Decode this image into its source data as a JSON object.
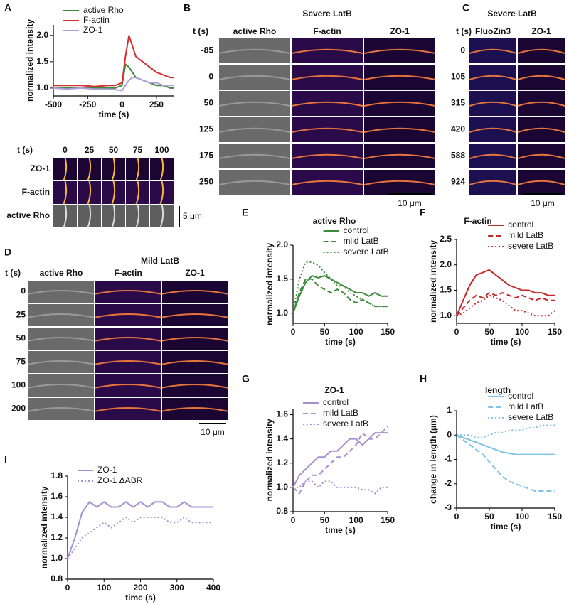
{
  "chart_data": [
    {
      "type": "line",
      "panel": "A",
      "xlabel": "time (s)",
      "ylabel": "normalized intensity",
      "legend": "upper left",
      "x": [
        -500,
        -400,
        -300,
        -200,
        -100,
        -50,
        0,
        25,
        50,
        75,
        100,
        150,
        200,
        250,
        300,
        350,
        380
      ],
      "xlim": [
        -500,
        380
      ],
      "xticks": [
        -500,
        -250,
        0,
        250
      ],
      "ylim": [
        0.85,
        2.2
      ],
      "yticks": [
        {
          "value": 1.0,
          "label": "1.0"
        },
        1.5,
        {
          "value": 2.0,
          "label": "2.0"
        }
      ],
      "series": [
        {
          "name": "active Rho",
          "color": "#3d8b3d",
          "dash": "solid",
          "values": [
            1.0,
            1.0,
            1.0,
            1.0,
            1.0,
            1.0,
            1.05,
            1.45,
            1.4,
            1.3,
            1.2,
            1.15,
            1.1,
            1.05,
            1.05,
            1.0,
            1.0
          ]
        },
        {
          "name": "F-actin",
          "color": "#d32f2f",
          "dash": "solid",
          "values": [
            1.05,
            1.05,
            1.05,
            1.03,
            1.05,
            1.05,
            1.1,
            1.6,
            2.0,
            1.8,
            1.6,
            1.5,
            1.4,
            1.3,
            1.25,
            1.2,
            1.2
          ]
        },
        {
          "name": "ZO-1",
          "color": "#b39ddb",
          "dash": "solid",
          "values": [
            1.0,
            0.98,
            1.0,
            0.98,
            0.98,
            0.97,
            0.95,
            1.05,
            1.15,
            1.2,
            1.2,
            1.15,
            1.1,
            1.1,
            1.05,
            1.05,
            1.05
          ]
        }
      ]
    },
    {
      "type": "line",
      "panel": "E",
      "title": "active Rho",
      "xlabel": "time (s)",
      "ylabel": "normalized intensity",
      "legend": "upper right",
      "x": [
        0,
        10,
        20,
        30,
        40,
        50,
        60,
        70,
        80,
        90,
        100,
        110,
        120,
        130,
        140,
        150
      ],
      "xlim": [
        0,
        150
      ],
      "xticks": [
        0,
        50,
        100,
        150
      ],
      "ylim": [
        0.85,
        2.0
      ],
      "yticks": [
        {
          "value": 1.0,
          "label": "1.0"
        },
        1.5,
        {
          "value": 2.0,
          "label": "2.0"
        }
      ],
      "series": [
        {
          "name": "control",
          "color": "#3d8b3d",
          "dash": "solid",
          "values": [
            1.0,
            1.25,
            1.45,
            1.55,
            1.52,
            1.55,
            1.5,
            1.45,
            1.4,
            1.35,
            1.3,
            1.3,
            1.25,
            1.3,
            1.25,
            1.25
          ]
        },
        {
          "name": "mild LatB",
          "color": "#3d8b3d",
          "dash": "dashed",
          "values": [
            1.0,
            1.3,
            1.5,
            1.5,
            1.4,
            1.35,
            1.3,
            1.35,
            1.3,
            1.2,
            1.15,
            1.2,
            1.15,
            1.1,
            1.1,
            1.1
          ]
        },
        {
          "name": "severe LatB",
          "color": "#3d8b3d",
          "dash": "dotted",
          "values": [
            1.0,
            1.5,
            1.75,
            1.75,
            1.7,
            1.6,
            1.5,
            1.4,
            1.4,
            1.3,
            1.25,
            1.2,
            1.15,
            1.1,
            1.1,
            1.1
          ]
        }
      ]
    },
    {
      "type": "line",
      "panel": "F",
      "title": "F-actin",
      "xlabel": "time (s)",
      "ylabel": "normalized intensity",
      "legend": "upper right",
      "x": [
        0,
        10,
        20,
        30,
        40,
        50,
        60,
        70,
        80,
        90,
        100,
        110,
        120,
        130,
        140,
        150
      ],
      "xlim": [
        0,
        150
      ],
      "xticks": [
        0,
        50,
        100,
        150
      ],
      "ylim": [
        0.85,
        2.5
      ],
      "yticks": [
        {
          "value": 1.0,
          "label": "1.0"
        },
        1.5,
        {
          "value": 2.0,
          "label": "2.0"
        },
        2.5
      ],
      "series": [
        {
          "name": "control",
          "color": "#c62828",
          "dash": "solid",
          "values": [
            1.0,
            1.3,
            1.6,
            1.8,
            1.85,
            1.9,
            1.8,
            1.7,
            1.6,
            1.55,
            1.5,
            1.5,
            1.45,
            1.45,
            1.4,
            1.4
          ]
        },
        {
          "name": "mild LatB",
          "color": "#c62828",
          "dash": "dashed",
          "values": [
            1.0,
            1.15,
            1.3,
            1.4,
            1.35,
            1.45,
            1.4,
            1.45,
            1.4,
            1.35,
            1.4,
            1.35,
            1.3,
            1.35,
            1.3,
            1.3
          ]
        },
        {
          "name": "severe LatB",
          "color": "#c62828",
          "dash": "dotted",
          "values": [
            1.0,
            1.05,
            1.15,
            1.25,
            1.3,
            1.4,
            1.35,
            1.3,
            1.2,
            1.1,
            1.1,
            1.05,
            1.0,
            1.0,
            1.0,
            1.1
          ]
        }
      ]
    },
    {
      "type": "line",
      "panel": "G",
      "title": "ZO-1",
      "xlabel": "time (s)",
      "ylabel": "normalized intensity",
      "legend": "upper left",
      "x": [
        0,
        10,
        20,
        30,
        40,
        50,
        60,
        70,
        80,
        90,
        100,
        110,
        120,
        130,
        140,
        150
      ],
      "xlim": [
        0,
        150
      ],
      "xticks": [
        0,
        50,
        100,
        150
      ],
      "ylim": [
        0.8,
        1.65
      ],
      "yticks": [
        0.8,
        {
          "value": 1.0,
          "label": "1.0"
        },
        1.2,
        1.4,
        1.6
      ],
      "series": [
        {
          "name": "control",
          "color": "#a58fcf",
          "dash": "solid",
          "values": [
            1.0,
            1.1,
            1.15,
            1.2,
            1.25,
            1.25,
            1.3,
            1.3,
            1.35,
            1.4,
            1.4,
            1.35,
            1.4,
            1.45,
            1.45,
            1.45
          ]
        },
        {
          "name": "mild LatB",
          "color": "#a58fcf",
          "dash": "dashed",
          "values": [
            1.0,
            0.95,
            1.05,
            1.1,
            1.1,
            1.15,
            1.2,
            1.25,
            1.25,
            1.3,
            1.35,
            1.45,
            1.4,
            1.4,
            1.45,
            1.5
          ]
        },
        {
          "name": "severe LatB",
          "color": "#a58fcf",
          "dash": "dotted",
          "values": [
            1.0,
            1.0,
            1.05,
            1.05,
            1.0,
            1.05,
            1.05,
            1.0,
            1.0,
            1.0,
            1.0,
            0.98,
            0.98,
            0.95,
            1.0,
            1.0
          ]
        }
      ]
    },
    {
      "type": "line",
      "panel": "H",
      "title": "length",
      "xlabel": "time (s)",
      "ylabel": "change in length (μm)",
      "legend": "upper right",
      "x": [
        0,
        10,
        20,
        30,
        40,
        50,
        60,
        70,
        80,
        90,
        100,
        110,
        120,
        130,
        140,
        150
      ],
      "xlim": [
        0,
        150
      ],
      "xticks": [
        0,
        50,
        100,
        150
      ],
      "ylim": [
        -3,
        1
      ],
      "yticks": [
        -3,
        -2,
        -1,
        0,
        1
      ],
      "series": [
        {
          "name": "control",
          "color": "#7ec3e8",
          "dash": "solid",
          "values": [
            0,
            -0.1,
            -0.2,
            -0.3,
            -0.4,
            -0.5,
            -0.6,
            -0.7,
            -0.75,
            -0.8,
            -0.8,
            -0.8,
            -0.8,
            -0.8,
            -0.8,
            -0.8
          ]
        },
        {
          "name": "mild LatB",
          "color": "#7ec3e8",
          "dash": "dashed",
          "values": [
            0,
            -0.2,
            -0.4,
            -0.6,
            -0.8,
            -1.1,
            -1.4,
            -1.7,
            -1.9,
            -2.0,
            -2.1,
            -2.2,
            -2.3,
            -2.3,
            -2.3,
            -2.3
          ]
        },
        {
          "name": "severe LatB",
          "color": "#7ec3e8",
          "dash": "dotted",
          "values": [
            0,
            0,
            0,
            -0.1,
            -0.1,
            0,
            0.1,
            0.1,
            0.2,
            0.2,
            0.2,
            0.3,
            0.3,
            0.4,
            0.4,
            0.4
          ]
        }
      ]
    },
    {
      "type": "line",
      "panel": "I",
      "xlabel": "time (s)",
      "ylabel": "normalized intensity",
      "legend": "upper left",
      "x": [
        0,
        20,
        40,
        60,
        80,
        100,
        120,
        140,
        160,
        180,
        200,
        220,
        240,
        260,
        280,
        300,
        320,
        340,
        360,
        380,
        400
      ],
      "xlim": [
        0,
        400
      ],
      "xticks": [
        0,
        100,
        200,
        300,
        400
      ],
      "ylim": [
        0.8,
        1.8
      ],
      "yticks": [
        0.8,
        {
          "value": 1.0,
          "label": "1.0"
        },
        1.2,
        1.4,
        1.6,
        1.8
      ],
      "series": [
        {
          "name": "ZO-1",
          "color": "#a58fcf",
          "dash": "solid",
          "values": [
            1.0,
            1.2,
            1.45,
            1.55,
            1.5,
            1.55,
            1.5,
            1.5,
            1.55,
            1.5,
            1.55,
            1.5,
            1.55,
            1.55,
            1.5,
            1.5,
            1.55,
            1.5,
            1.5,
            1.5,
            1.5
          ]
        },
        {
          "name": "ZO-1 ΔABR",
          "color": "#a58fcf",
          "dash": "dotted",
          "values": [
            1.0,
            1.1,
            1.2,
            1.25,
            1.3,
            1.35,
            1.3,
            1.35,
            1.4,
            1.35,
            1.4,
            1.4,
            1.4,
            1.4,
            1.35,
            1.35,
            1.4,
            1.35,
            1.35,
            1.35,
            1.35
          ]
        }
      ]
    }
  ],
  "image_panels": [
    {
      "time_header": "t (s)",
      "times": [
        "0",
        "25",
        "50",
        "75",
        "100"
      ],
      "channels": [
        "ZO-1",
        "F-actin",
        "active Rho"
      ],
      "scale_bar": "5 μm"
    },
    {
      "panel": "B",
      "title": "Severe LatB",
      "time_header": "t (s)",
      "times": [
        "-85",
        "0",
        "50",
        "125",
        "175",
        "250"
      ],
      "channels": [
        "active Rho",
        "F-actin",
        "ZO-1"
      ],
      "scale_bar": "10 μm"
    },
    {
      "panel": "C",
      "title": "Severe LatB",
      "time_header": "t (s)",
      "times": [
        "0",
        "105",
        "315",
        "420",
        "588",
        "924"
      ],
      "channels": [
        "FluoZin3",
        "ZO-1"
      ],
      "scale_bar": "10 μm"
    },
    {
      "panel": "D",
      "title": "Mild LatB",
      "time_header": "t (s)",
      "times": [
        "0",
        "25",
        "50",
        "75",
        "100",
        "200"
      ],
      "channels": [
        "active Rho",
        "F-actin",
        "ZO-1"
      ],
      "scale_bar": "10 μm"
    }
  ]
}
